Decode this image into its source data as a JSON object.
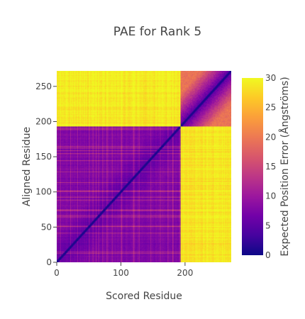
{
  "chart_data": {
    "type": "heatmap",
    "title": "PAE for Rank 5",
    "xlabel": "Scored Residue",
    "ylabel": "Aligned Residue",
    "xlim": [
      0,
      272
    ],
    "ylim": [
      0,
      272
    ],
    "x_ticks": [
      0,
      100,
      200
    ],
    "y_ticks": [
      0,
      50,
      100,
      150,
      200,
      250
    ],
    "x_tick_labels": [
      "0",
      "100",
      "200"
    ],
    "y_tick_labels": [
      "0",
      "50",
      "100",
      "150",
      "200",
      "250"
    ],
    "n_residues": 272,
    "domains": [
      {
        "start": 0,
        "end": 193
      },
      {
        "start": 193,
        "end": 272
      }
    ],
    "intra_domain_pae": [
      3,
      18
    ],
    "inter_domain_pae": 28,
    "colorbar": {
      "title": "Expected Position Error (Ångströms)",
      "min": 0,
      "max": 30,
      "ticks": [
        0,
        5,
        10,
        15,
        20,
        25,
        30
      ],
      "tick_labels": [
        "0",
        "5",
        "10",
        "15",
        "20",
        "25",
        "30"
      ],
      "colorscale": "Plasma",
      "colors": [
        "#0d0887",
        "#46039f",
        "#7201a8",
        "#9c179e",
        "#bd3786",
        "#d8576b",
        "#ed7953",
        "#fb9f3a",
        "#fdca26",
        "#f0f921"
      ]
    }
  }
}
